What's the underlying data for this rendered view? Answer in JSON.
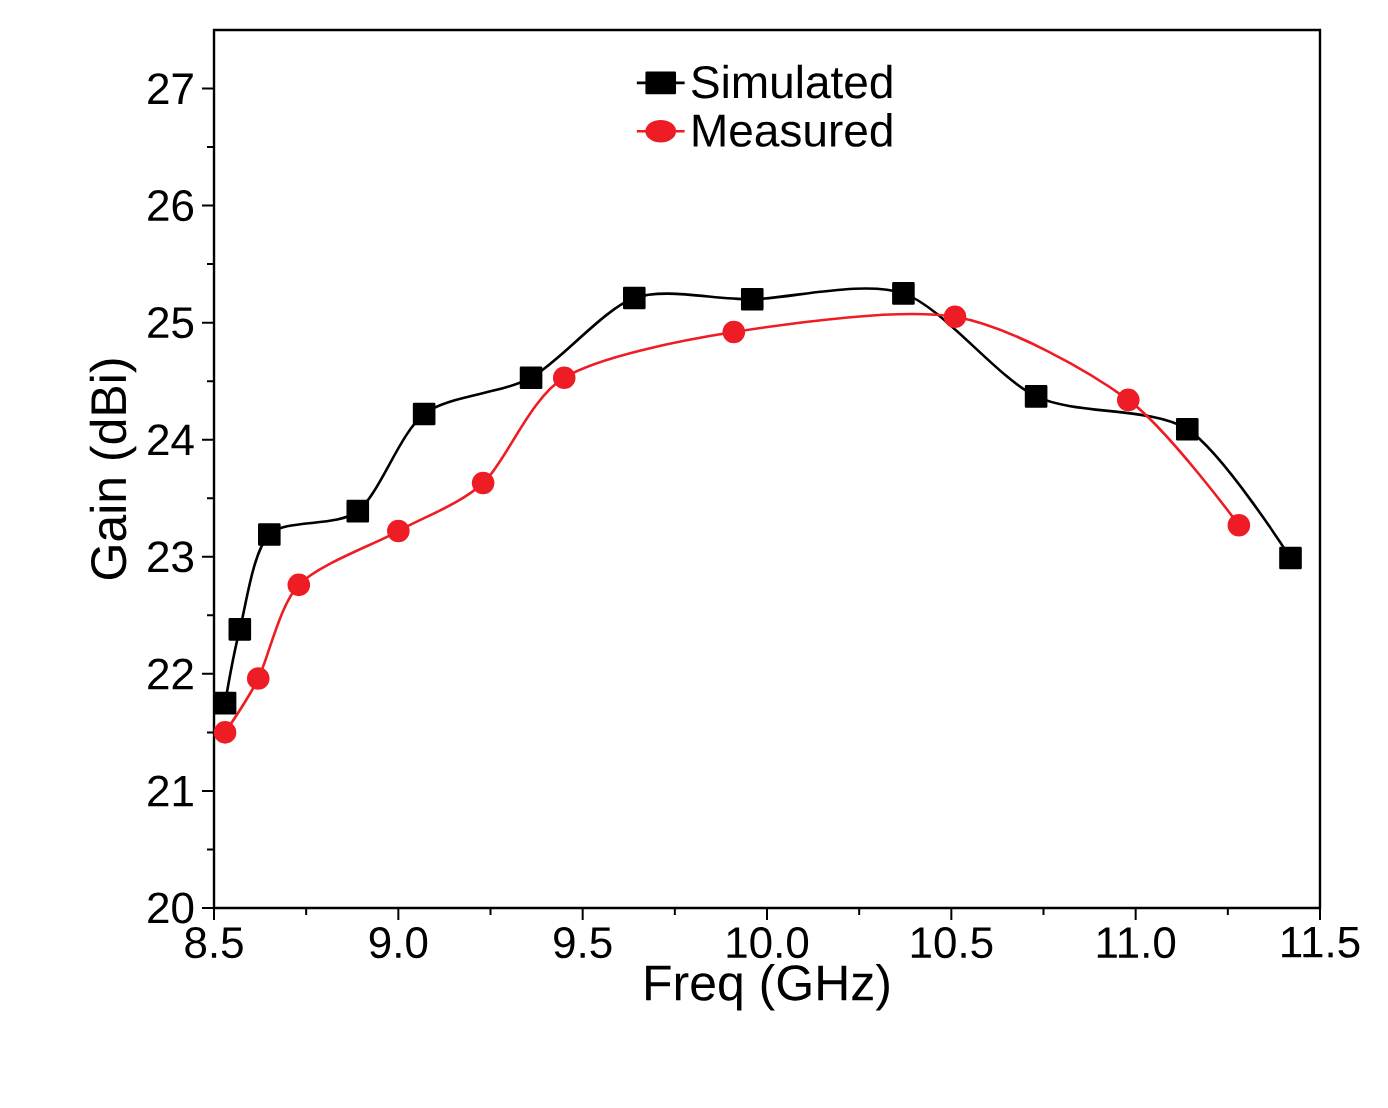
{
  "chart_data": {
    "type": "line",
    "xlabel": "Freq (GHz)",
    "ylabel": "Gain (dBi)",
    "xlim": [
      8.5,
      11.5
    ],
    "ylim": [
      20,
      27.5
    ],
    "xticks": [
      {
        "value": 8.5,
        "label": "8.5"
      },
      {
        "value": 9,
        "label": "9.0"
      },
      {
        "value": 9.5,
        "label": "9.5"
      },
      {
        "value": 10,
        "label": "10.0"
      },
      {
        "value": 10.5,
        "label": "10.5"
      },
      {
        "value": 11,
        "label": "11.0"
      },
      {
        "value": 11.5,
        "label": "11.5"
      }
    ],
    "yticks": [
      20,
      21,
      22,
      23,
      24,
      25,
      26,
      27
    ],
    "legend": "top",
    "grid": false,
    "line_style": "solid",
    "series": [
      {
        "name": "Simulated",
        "color": "#000000",
        "marker": "square",
        "x": [
          8.53,
          8.57,
          8.65,
          8.89,
          9.07,
          9.36,
          9.64,
          9.96,
          10.37,
          10.73,
          11.14,
          11.42
        ],
        "values": [
          21.75,
          22.38,
          23.19,
          23.39,
          24.22,
          24.53,
          25.21,
          25.2,
          25.25,
          24.37,
          24.09,
          22.99
        ]
      },
      {
        "name": "Measured",
        "color": "#ee1c24",
        "marker": "circle",
        "x": [
          8.53,
          8.62,
          8.73,
          9.0,
          9.23,
          9.45,
          9.91,
          10.51,
          10.98,
          11.28
        ],
        "values": [
          21.5,
          21.96,
          22.76,
          23.22,
          23.63,
          24.53,
          24.92,
          25.05,
          24.34,
          23.27
        ]
      }
    ]
  }
}
